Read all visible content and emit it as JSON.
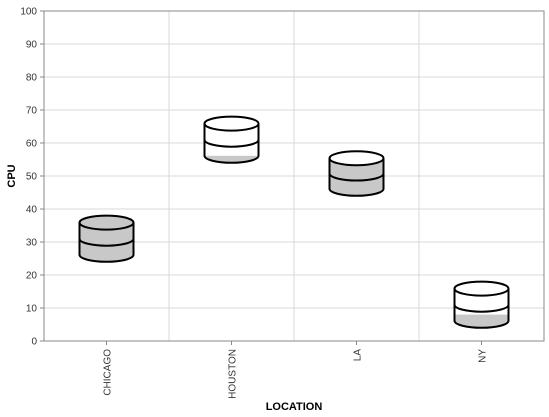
{
  "chart_data": {
    "type": "scatter",
    "marker": "cylinder",
    "xlabel": "LOCATION",
    "ylabel": "CPU",
    "ylim": [
      0,
      100
    ],
    "yticks": [
      0,
      10,
      20,
      30,
      40,
      50,
      60,
      70,
      80,
      90,
      100
    ],
    "grid": true,
    "categories": [
      "CHICAGO",
      "HOUSTON",
      "LA",
      "NY"
    ],
    "points": [
      {
        "category": "CHICAGO",
        "top": 38,
        "bottom": 24,
        "fill_top": 36
      },
      {
        "category": "HOUSTON",
        "top": 68,
        "bottom": 54,
        "fill_top": 55.5
      },
      {
        "category": "LA",
        "top": 57.5,
        "bottom": 44,
        "fill_top": 55
      },
      {
        "category": "NY",
        "top": 18,
        "bottom": 4,
        "fill_top": 8
      }
    ],
    "colors": {
      "fill": "#c8c8c8",
      "stroke": "#000000",
      "grid": "#d8d8d8",
      "axis": "#888888"
    }
  }
}
